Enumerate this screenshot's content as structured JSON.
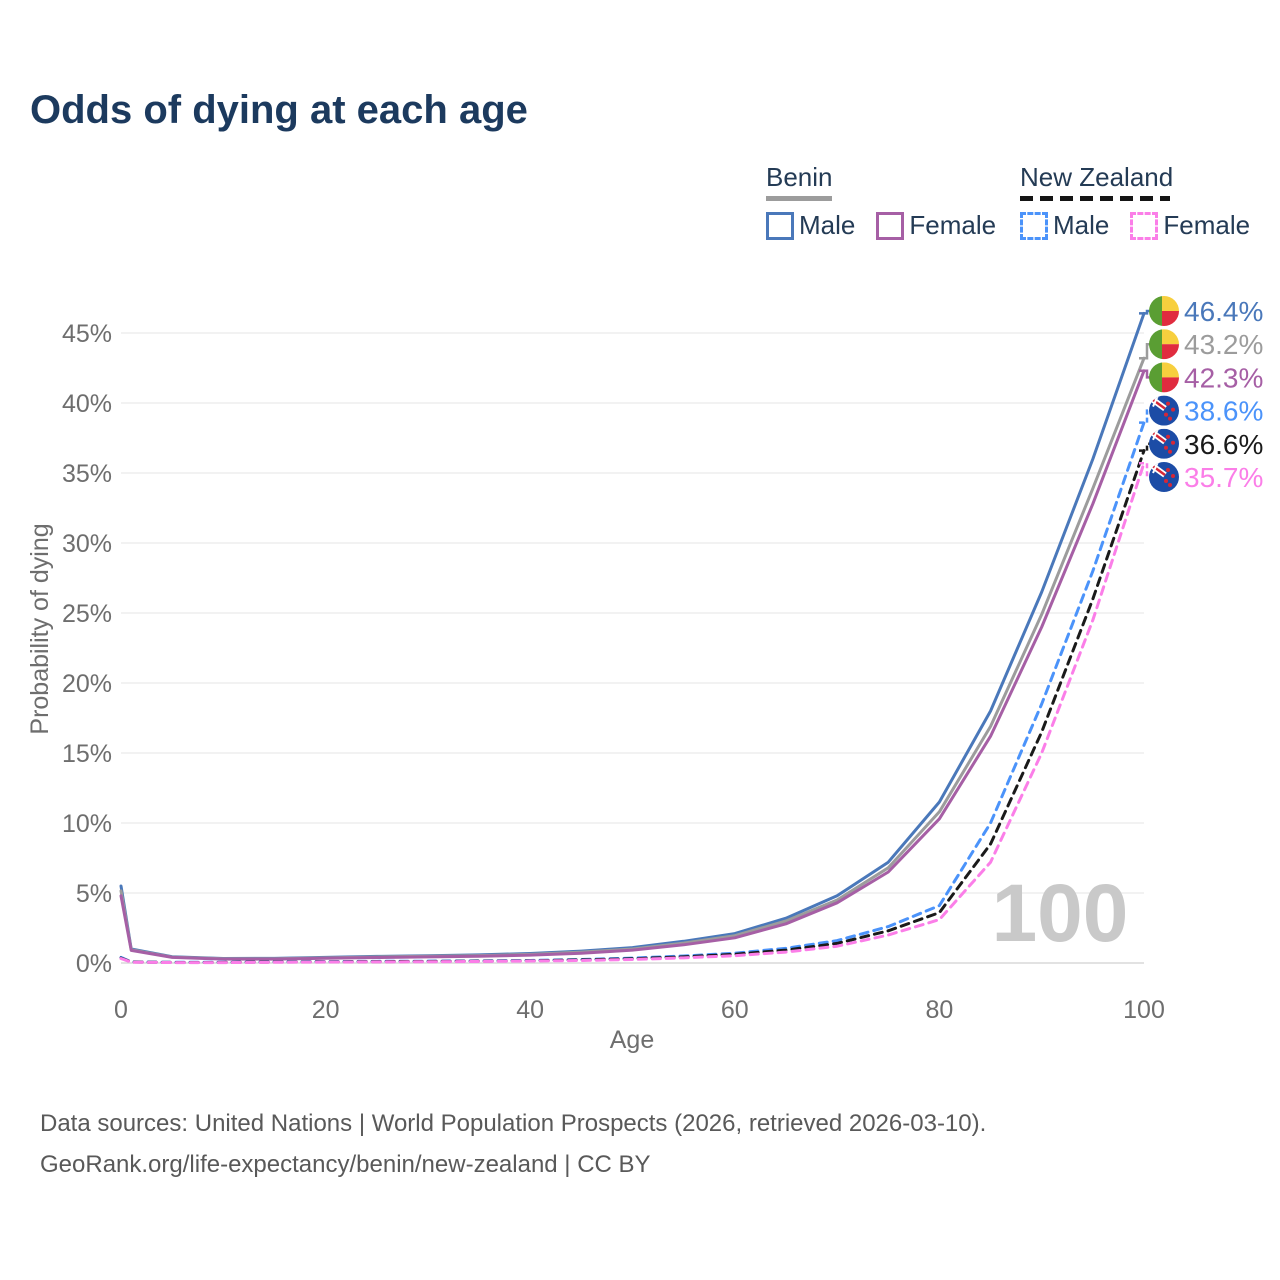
{
  "title": "Odds of dying at each age",
  "legend": {
    "groups": [
      {
        "country": "Benin",
        "line_style": "solid",
        "underline_color": "#9c9c9c",
        "entries": [
          {
            "label": "Male",
            "color": "#4a78ba"
          },
          {
            "label": "Female",
            "color": "#a65fa5"
          }
        ]
      },
      {
        "country": "New Zealand",
        "line_style": "dashed",
        "underline_color": "#151515",
        "entries": [
          {
            "label": "Male",
            "color": "#4b93fa"
          },
          {
            "label": "Female",
            "color": "#fb7ee8"
          }
        ]
      }
    ]
  },
  "chart_data": {
    "type": "line",
    "title": "Odds of dying at each age",
    "xlabel": "Age",
    "ylabel": "Probability of dying",
    "xlim": [
      0,
      100
    ],
    "ylim": [
      0,
      47
    ],
    "grid": true,
    "hover_age_watermark": "100",
    "x_axis": {
      "label": "Age",
      "ticks": [
        0,
        20,
        40,
        60,
        80,
        100
      ]
    },
    "y_axis": {
      "label": "Probability of dying",
      "ticks": [
        {
          "v": 0,
          "label": "0%"
        },
        {
          "v": 5,
          "label": "5%"
        },
        {
          "v": 10,
          "label": "10%"
        },
        {
          "v": 15,
          "label": "15%"
        },
        {
          "v": 20,
          "label": "20%"
        },
        {
          "v": 25,
          "label": "25%"
        },
        {
          "v": 30,
          "label": "30%"
        },
        {
          "v": 35,
          "label": "35%"
        },
        {
          "v": 40,
          "label": "40%"
        },
        {
          "v": 45,
          "label": "45%"
        }
      ]
    },
    "series": [
      {
        "id": "benin-male",
        "name": "Benin Male",
        "color": "#4a78ba",
        "dashed": false,
        "flag": "benin",
        "end_label": "46.4%",
        "ages": [
          0,
          1,
          5,
          10,
          15,
          20,
          25,
          30,
          35,
          40,
          45,
          50,
          55,
          60,
          65,
          70,
          75,
          80,
          85,
          90,
          95,
          100
        ],
        "values": [
          5.5,
          1.0,
          0.45,
          0.32,
          0.33,
          0.4,
          0.47,
          0.52,
          0.58,
          0.68,
          0.85,
          1.1,
          1.55,
          2.1,
          3.2,
          4.8,
          7.2,
          11.5,
          18.0,
          26.5,
          36.0,
          46.4
        ]
      },
      {
        "id": "benin-both",
        "name": "Benin Both sexes",
        "color": "#9c9c9c",
        "dashed": false,
        "flag": "benin",
        "end_label": "43.2%",
        "ages": [
          0,
          1,
          5,
          10,
          15,
          20,
          25,
          30,
          35,
          40,
          45,
          50,
          55,
          60,
          65,
          70,
          75,
          80,
          85,
          90,
          95,
          100
        ],
        "values": [
          5.15,
          0.95,
          0.42,
          0.3,
          0.3,
          0.37,
          0.43,
          0.48,
          0.53,
          0.62,
          0.78,
          1.0,
          1.42,
          1.95,
          3.0,
          4.5,
          6.8,
          10.8,
          16.9,
          24.9,
          33.9,
          43.2
        ]
      },
      {
        "id": "benin-female",
        "name": "Benin Female",
        "color": "#a65fa5",
        "dashed": false,
        "flag": "benin",
        "end_label": "42.3%",
        "ages": [
          0,
          1,
          5,
          10,
          15,
          20,
          25,
          30,
          35,
          40,
          45,
          50,
          55,
          60,
          65,
          70,
          75,
          80,
          85,
          90,
          95,
          100
        ],
        "values": [
          4.8,
          0.9,
          0.4,
          0.28,
          0.28,
          0.34,
          0.39,
          0.44,
          0.48,
          0.56,
          0.7,
          0.92,
          1.3,
          1.8,
          2.8,
          4.3,
          6.5,
          10.3,
          16.2,
          24.0,
          32.8,
          42.3
        ]
      },
      {
        "id": "nz-male",
        "name": "New Zealand Male",
        "color": "#4b93fa",
        "dashed": true,
        "flag": "nz",
        "end_label": "38.6%",
        "ages": [
          0,
          1,
          5,
          10,
          15,
          20,
          25,
          30,
          35,
          40,
          45,
          50,
          55,
          60,
          65,
          70,
          75,
          80,
          85,
          90,
          95,
          100
        ],
        "values": [
          0.4,
          0.08,
          0.05,
          0.05,
          0.08,
          0.1,
          0.12,
          0.13,
          0.15,
          0.18,
          0.25,
          0.35,
          0.5,
          0.7,
          1.05,
          1.6,
          2.6,
          4.1,
          10.0,
          18.5,
          28.0,
          38.6
        ]
      },
      {
        "id": "nz-both",
        "name": "New Zealand Both sexes",
        "color": "#1a1a1a",
        "dashed": true,
        "flag": "nz",
        "end_label": "36.6%",
        "ages": [
          0,
          1,
          5,
          10,
          15,
          20,
          25,
          30,
          35,
          40,
          45,
          50,
          55,
          60,
          65,
          70,
          75,
          80,
          85,
          90,
          95,
          100
        ],
        "values": [
          0.35,
          0.07,
          0.04,
          0.04,
          0.07,
          0.09,
          0.1,
          0.11,
          0.13,
          0.16,
          0.22,
          0.3,
          0.44,
          0.62,
          0.92,
          1.4,
          2.3,
          3.6,
          8.5,
          16.5,
          26.0,
          36.6
        ]
      },
      {
        "id": "nz-female",
        "name": "New Zealand Female",
        "color": "#fb7ee8",
        "dashed": true,
        "flag": "nz",
        "end_label": "35.7%",
        "ages": [
          0,
          1,
          5,
          10,
          15,
          20,
          25,
          30,
          35,
          40,
          45,
          50,
          55,
          60,
          65,
          70,
          75,
          80,
          85,
          90,
          95,
          100
        ],
        "values": [
          0.32,
          0.06,
          0.03,
          0.03,
          0.05,
          0.07,
          0.08,
          0.09,
          0.11,
          0.14,
          0.18,
          0.25,
          0.37,
          0.52,
          0.78,
          1.2,
          2.0,
          3.1,
          7.2,
          15.0,
          24.5,
          35.7
        ]
      }
    ],
    "flag_colors": {
      "benin": {
        "green": "#5a9e33",
        "yellow": "#f7cf3e",
        "red": "#e02c3f"
      },
      "nz": {
        "blue": "#1c4ca6",
        "red": "#d62737",
        "white": "#ffffff"
      }
    }
  },
  "colors": {
    "title": "#1c3a5e",
    "axis_text": "#6e6e6e",
    "gridline": "#eeeeee",
    "baseline": "#d9d9d9",
    "watermark": "#c9c9c9",
    "footer_text": "#595959"
  },
  "footer": {
    "line1": "Data sources: United Nations | World Population Prospects (2026, retrieved 2026-03-10).",
    "line2": "GeoRank.org/life-expectancy/benin/new-zealand | CC BY"
  }
}
